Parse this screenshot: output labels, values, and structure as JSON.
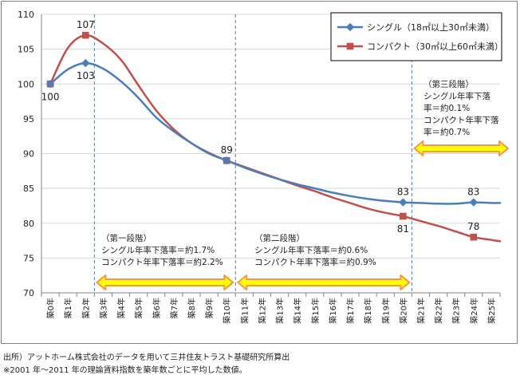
{
  "chart_data": {
    "type": "line",
    "categories": [
      "築0年",
      "築1年",
      "築2年",
      "築3年",
      "築4年",
      "築5年",
      "築6年",
      "築7年",
      "築8年",
      "築9年",
      "築10年",
      "築11年",
      "築12年",
      "築13年",
      "築14年",
      "築15年",
      "築16年",
      "築17年",
      "築18年",
      "築19年",
      "築20年",
      "築21年",
      "築22年",
      "築23年",
      "築24年",
      "築25年"
    ],
    "ylim": [
      70,
      110
    ],
    "yticks": [
      "70",
      "75",
      "80",
      "85",
      "90",
      "95",
      "100",
      "105",
      "110"
    ],
    "grid": "horizontal",
    "legend_position": "top-right",
    "series": [
      {
        "name": "シングル（18㎡以上30㎡未満）",
        "color": "#4a7ebb",
        "marker": "diamond",
        "markers": [
          [
            0,
            100
          ],
          [
            2,
            103
          ],
          [
            10,
            89
          ],
          [
            20,
            83
          ],
          [
            24,
            83
          ]
        ],
        "curve": [
          [
            0,
            100
          ],
          [
            1,
            102.1
          ],
          [
            2,
            103
          ],
          [
            3,
            102.2
          ],
          [
            4,
            100.4
          ],
          [
            5,
            98
          ],
          [
            6,
            95.2
          ],
          [
            7,
            93.2
          ],
          [
            8,
            91.5
          ],
          [
            9,
            90
          ],
          [
            10,
            89
          ],
          [
            11,
            88
          ],
          [
            12,
            87.1
          ],
          [
            13,
            86.3
          ],
          [
            14,
            85.6
          ],
          [
            15,
            85
          ],
          [
            16,
            84.4
          ],
          [
            17,
            83.9
          ],
          [
            18,
            83.5
          ],
          [
            19,
            83.2
          ],
          [
            20,
            83
          ],
          [
            21,
            82.9
          ],
          [
            22,
            82.8
          ],
          [
            23,
            82.8
          ],
          [
            24,
            83
          ],
          [
            25,
            82.9
          ],
          [
            25.5,
            82.9
          ]
        ]
      },
      {
        "name": "コンパクト（30㎡以上60㎡未満）",
        "color": "#c0504d",
        "marker": "square",
        "markers": [
          [
            0,
            100
          ],
          [
            2,
            107
          ],
          [
            10,
            89
          ],
          [
            20,
            81
          ],
          [
            24,
            78
          ]
        ],
        "curve": [
          [
            0,
            100
          ],
          [
            1,
            105.2
          ],
          [
            2,
            107
          ],
          [
            3,
            105.8
          ],
          [
            4,
            103.5
          ],
          [
            5,
            99.8
          ],
          [
            6,
            96.2
          ],
          [
            7,
            93.5
          ],
          [
            8,
            91.5
          ],
          [
            9,
            90.1
          ],
          [
            10,
            89
          ],
          [
            11,
            88.1
          ],
          [
            12,
            87.2
          ],
          [
            13,
            86.3
          ],
          [
            14,
            85.4
          ],
          [
            15,
            84.6
          ],
          [
            16,
            83.7
          ],
          [
            17,
            82.9
          ],
          [
            18,
            82.1
          ],
          [
            19,
            81.5
          ],
          [
            20,
            81
          ],
          [
            21,
            80.3
          ],
          [
            22,
            79.6
          ],
          [
            23,
            78.8
          ],
          [
            24,
            78
          ],
          [
            25,
            77.6
          ],
          [
            25.5,
            77.4
          ]
        ]
      }
    ],
    "data_labels": [
      {
        "text": "100",
        "x": 0,
        "y": 100,
        "pos": "below"
      },
      {
        "text": "103",
        "x": 2,
        "y": 103,
        "pos": "below"
      },
      {
        "text": "107",
        "x": 2,
        "y": 107,
        "pos": "above"
      },
      {
        "text": "89",
        "x": 10,
        "y": 89,
        "pos": "above"
      },
      {
        "text": "83",
        "x": 20,
        "y": 83,
        "pos": "above"
      },
      {
        "text": "81",
        "x": 20,
        "y": 81,
        "pos": "below"
      },
      {
        "text": "83",
        "x": 24,
        "y": 83,
        "pos": "above"
      },
      {
        "text": "78",
        "x": 24,
        "y": 78,
        "pos": "above"
      }
    ],
    "phase_dividers": [
      2.5,
      10.5,
      20.5
    ],
    "phases": [
      {
        "title": "（第一段階）",
        "line1": "シングル年率下落率＝約1.7%",
        "line2": "コンパクト年率下落率＝約2.2%",
        "from": 2.5,
        "to": 10.5
      },
      {
        "title": "（第二段階）",
        "line1": "シングル年率下落率＝約0.6%",
        "line2": "コンパクト年率下落率＝約0.9%",
        "from": 10.5,
        "to": 20.5
      },
      {
        "title": "（第三段階）",
        "line1": "シングル年率下落",
        "line1b": "率＝約0.1%",
        "line2": "コンパクト年率下落",
        "line2b": "率＝約0.7%",
        "from": 20.5,
        "to": 26
      }
    ]
  },
  "footnotes": {
    "source": "出所）アットホーム株式会社のデータを用いて三井住友トラスト基礎研究所算出",
    "note": "※2001 年～2011 年の理論賃料指数を築年数ごとに平均した数値。"
  }
}
